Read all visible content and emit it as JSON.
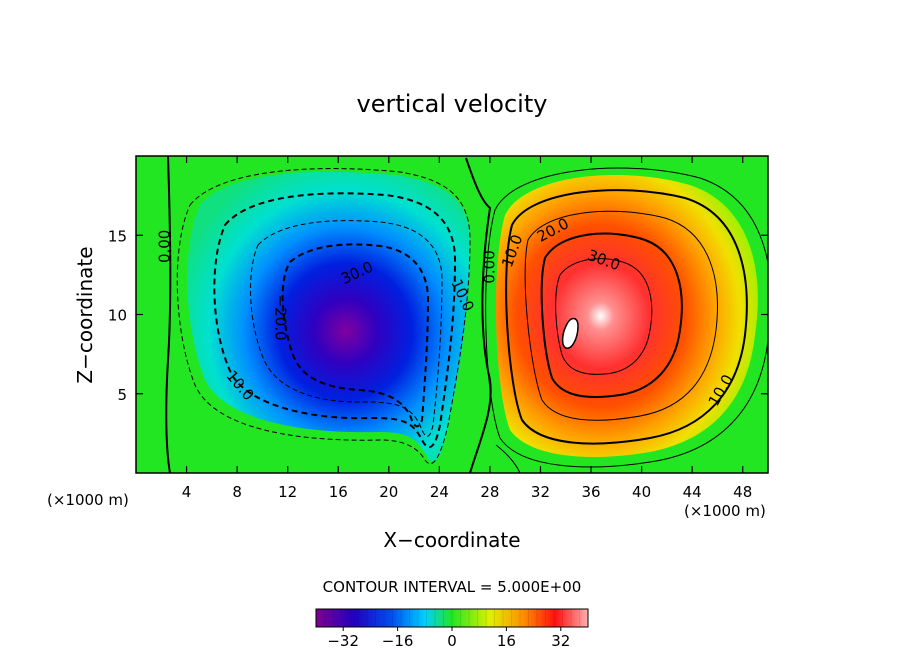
{
  "chart_data": {
    "type": "heatmap",
    "title": "vertical velocity",
    "xlabel": "X−coordinate",
    "ylabel": "Z−coordinate",
    "x_unit_left": "(×1000 m)",
    "x_unit_right": "(×1000 m)",
    "xlim": [
      0,
      50
    ],
    "ylim": [
      0,
      20
    ],
    "x_ticks": [
      4,
      8,
      12,
      16,
      20,
      24,
      28,
      32,
      36,
      40,
      44,
      48
    ],
    "x_tick_labels": [
      "4",
      "8",
      "12",
      "16",
      "20",
      "24",
      "28",
      "32",
      "36",
      "40",
      "44",
      "48"
    ],
    "y_ticks": [
      5,
      10,
      15
    ],
    "y_tick_labels": [
      "5",
      "10",
      "15"
    ],
    "contour_interval_label": "CONTOUR INTERVAL = 5.000E+00",
    "contour_interval": 5,
    "colorbar_range": [
      -40,
      40
    ],
    "colorbar_ticks": [
      -32,
      -16,
      0,
      16,
      32
    ],
    "colorbar_tick_labels": [
      "−32",
      "−16",
      "0",
      "16",
      "32"
    ],
    "field": {
      "minimum": {
        "x": 21,
        "z": 8.5,
        "value": -40
      },
      "maximum": {
        "x": 34,
        "z": 9.0,
        "value": 45
      }
    },
    "contour_labels": [
      {
        "text": "0.00",
        "x": 2.3,
        "z": 14.3,
        "rotate": -90
      },
      {
        "text": "0.00",
        "x": 28.0,
        "z": 13.0,
        "rotate": -90
      },
      {
        "text": "10.0",
        "x": 8.2,
        "z": 5.5,
        "rotate": 50
      },
      {
        "text": "−20.0",
        "x": 11.4,
        "z": 9.8,
        "rotate": 90
      },
      {
        "text": "30.0",
        "x": 17.5,
        "z": 12.6,
        "rotate": -25
      },
      {
        "text": "10.0",
        "x": 25.8,
        "z": 11.2,
        "rotate": 65
      },
      {
        "text": "10.0",
        "x": 29.8,
        "z": 14.0,
        "rotate": -70
      },
      {
        "text": "20.0",
        "x": 33.0,
        "z": 15.3,
        "rotate": -28
      },
      {
        "text": "30.0",
        "x": 37.0,
        "z": 13.4,
        "rotate": 20
      },
      {
        "text": "10.0",
        "x": 46.3,
        "z": 5.2,
        "rotate": -60
      }
    ]
  },
  "colors": {
    "background_zero": "#22e622",
    "positive_ramp": [
      "#22e622",
      "#d8f000",
      "#ffd000",
      "#ff9000",
      "#ff3000",
      "#f03030",
      "#ff8080",
      "#ffffff"
    ],
    "negative_ramp": [
      "#22e622",
      "#10e090",
      "#00d0ff",
      "#0080ff",
      "#0020e0",
      "#3000b0",
      "#800090"
    ]
  }
}
